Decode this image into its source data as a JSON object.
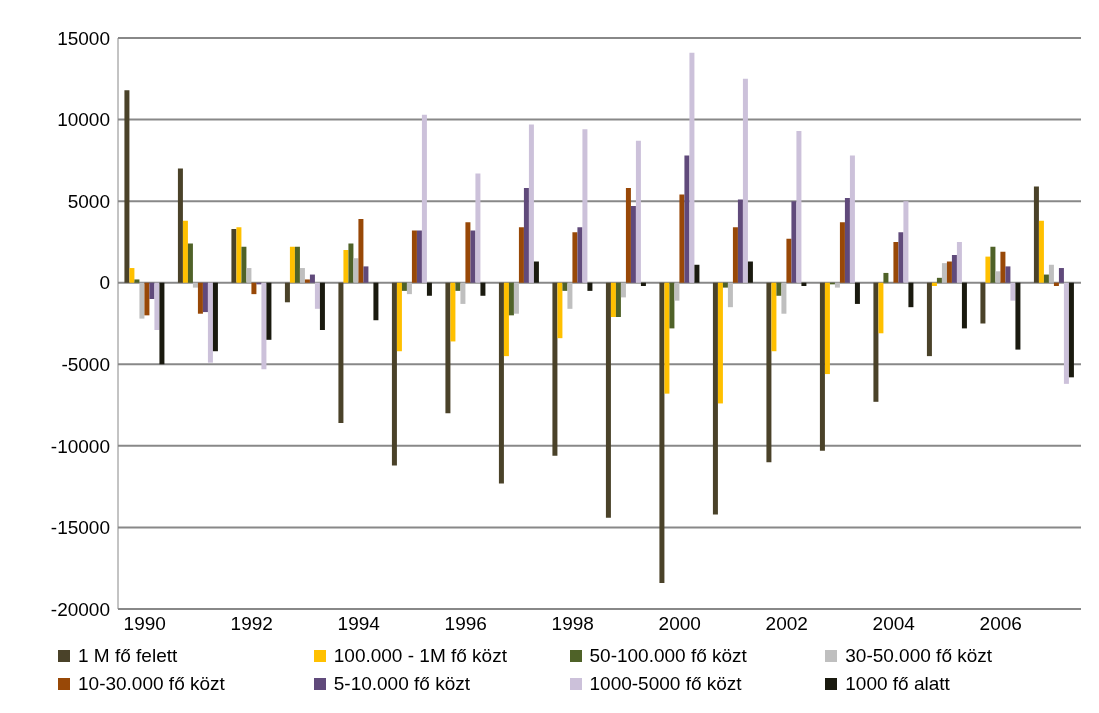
{
  "chart_data": {
    "type": "bar",
    "categories": [
      "1990",
      null,
      "1992",
      null,
      "1994",
      null,
      "1996",
      null,
      "1998",
      null,
      "2000",
      null,
      "2002",
      null,
      "2004",
      null,
      "2006",
      null
    ],
    "ylim": [
      -20000,
      15000
    ],
    "yticks": [
      -20000,
      -15000,
      -10000,
      -5000,
      0,
      5000,
      10000,
      15000
    ],
    "grid": "y",
    "legend": "bottom",
    "series": [
      {
        "name": "1 M fő felett",
        "color": "#4a4229",
        "values": [
          11800,
          7000,
          3300,
          -1200,
          -8600,
          -11200,
          -8000,
          -12300,
          -10600,
          -14400,
          -18400,
          -14200,
          -11000,
          -10300,
          -7300,
          -4500,
          -2500,
          5900
        ]
      },
      {
        "name": "100.000 - 1M fő közt",
        "color": "#ffc000",
        "values": [
          900,
          3800,
          3400,
          2200,
          2000,
          -4200,
          -3600,
          -4500,
          -3400,
          -2100,
          -6800,
          -7400,
          -4200,
          -5600,
          -3100,
          -200,
          1600,
          3800
        ]
      },
      {
        "name": "50-100.000 fő közt",
        "color": "#4f6228",
        "values": [
          200,
          2400,
          2200,
          2200,
          2400,
          -500,
          -500,
          -2000,
          -500,
          -2100,
          -2800,
          -300,
          -800,
          -100,
          600,
          300,
          2200,
          500
        ]
      },
      {
        "name": "30-50.000 fő közt",
        "color": "#bfbfbf",
        "values": [
          -2200,
          -300,
          900,
          900,
          1500,
          -700,
          -1300,
          -1900,
          -1600,
          -900,
          -1100,
          -1500,
          -1900,
          -300,
          null,
          1200,
          700,
          1100
        ]
      },
      {
        "name": "10-30.000 fő közt",
        "color": "#984807",
        "values": [
          -2000,
          -1900,
          -700,
          200,
          3900,
          3200,
          3700,
          3400,
          3100,
          5800,
          5400,
          3400,
          2700,
          3700,
          2500,
          1300,
          1900,
          -200
        ]
      },
      {
        "name": "5-10.000 fő közt",
        "color": "#604a7b",
        "values": [
          -1000,
          -1800,
          -100,
          500,
          1000,
          3200,
          3200,
          5800,
          3400,
          4700,
          7800,
          5100,
          5000,
          5200,
          3100,
          1700,
          1000,
          900
        ]
      },
      {
        "name": "1000-5000 fő közt",
        "color": "#ccc1da",
        "values": [
          -2900,
          -4900,
          -5300,
          -1600,
          null,
          10300,
          6700,
          9700,
          9400,
          8700,
          14100,
          12500,
          9300,
          7800,
          5000,
          2500,
          -1100,
          -6200
        ]
      },
      {
        "name": "1000 fő alatt",
        "color": "#1a1a0f",
        "values": [
          -5000,
          -4200,
          -3500,
          -2900,
          -2300,
          -800,
          -800,
          1300,
          -500,
          -200,
          1100,
          1300,
          -200,
          -1300,
          -1500,
          -2800,
          -4100,
          -5800
        ]
      }
    ]
  }
}
